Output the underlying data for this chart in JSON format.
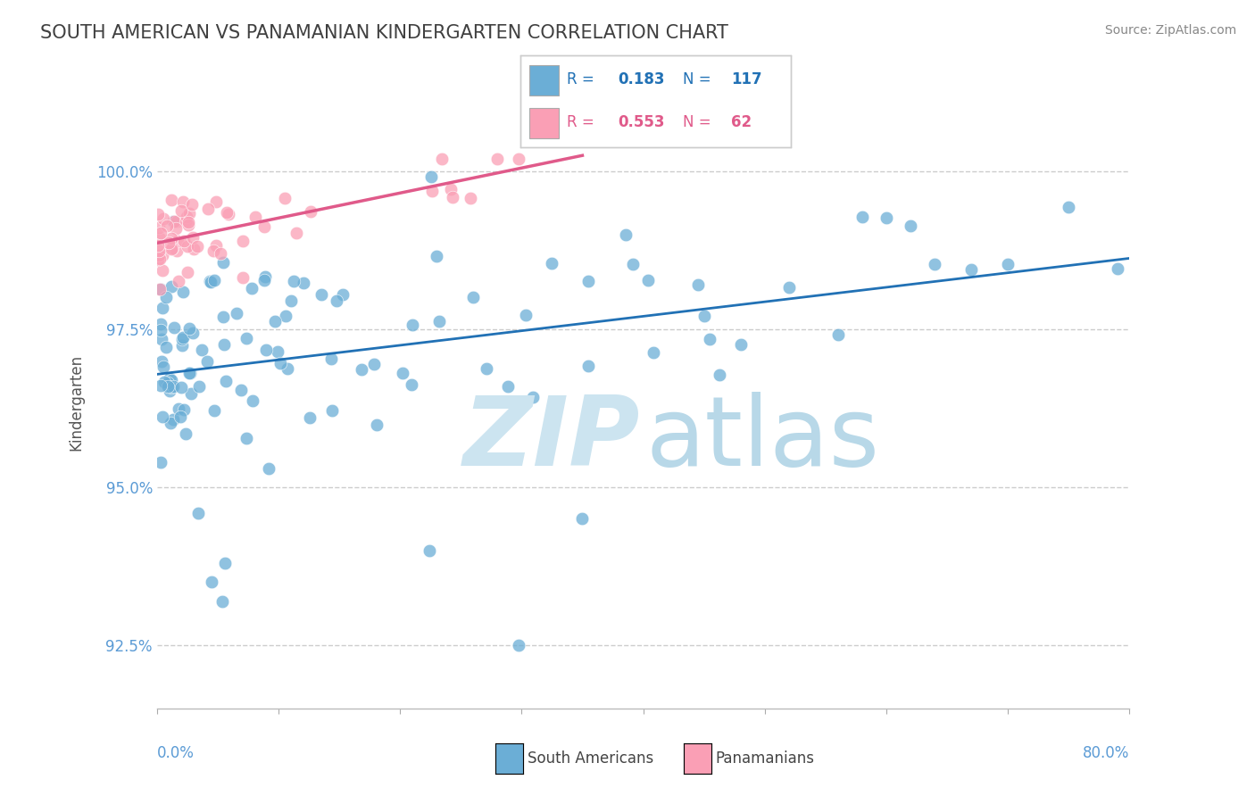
{
  "title": "SOUTH AMERICAN VS PANAMANIAN KINDERGARTEN CORRELATION CHART",
  "source": "Source: ZipAtlas.com",
  "ylabel": "Kindergarten",
  "y_ticks": [
    92.5,
    95.0,
    97.5,
    100.0
  ],
  "y_tick_labels": [
    "92.5%",
    "95.0%",
    "97.5%",
    "100.0%"
  ],
  "xlim": [
    0.0,
    80.0
  ],
  "ylim": [
    91.5,
    101.2
  ],
  "legend_r1": "0.183",
  "legend_n1": "117",
  "legend_r2": "0.553",
  "legend_n2": "62",
  "color_blue": "#6baed6",
  "color_pink": "#fa9fb5",
  "color_line_blue": "#2171b5",
  "color_line_pink": "#e05a8a",
  "color_axis_labels": "#5b9bd5",
  "watermark_zip_color": "#cce4f0",
  "watermark_atlas_color": "#b8d8e8"
}
